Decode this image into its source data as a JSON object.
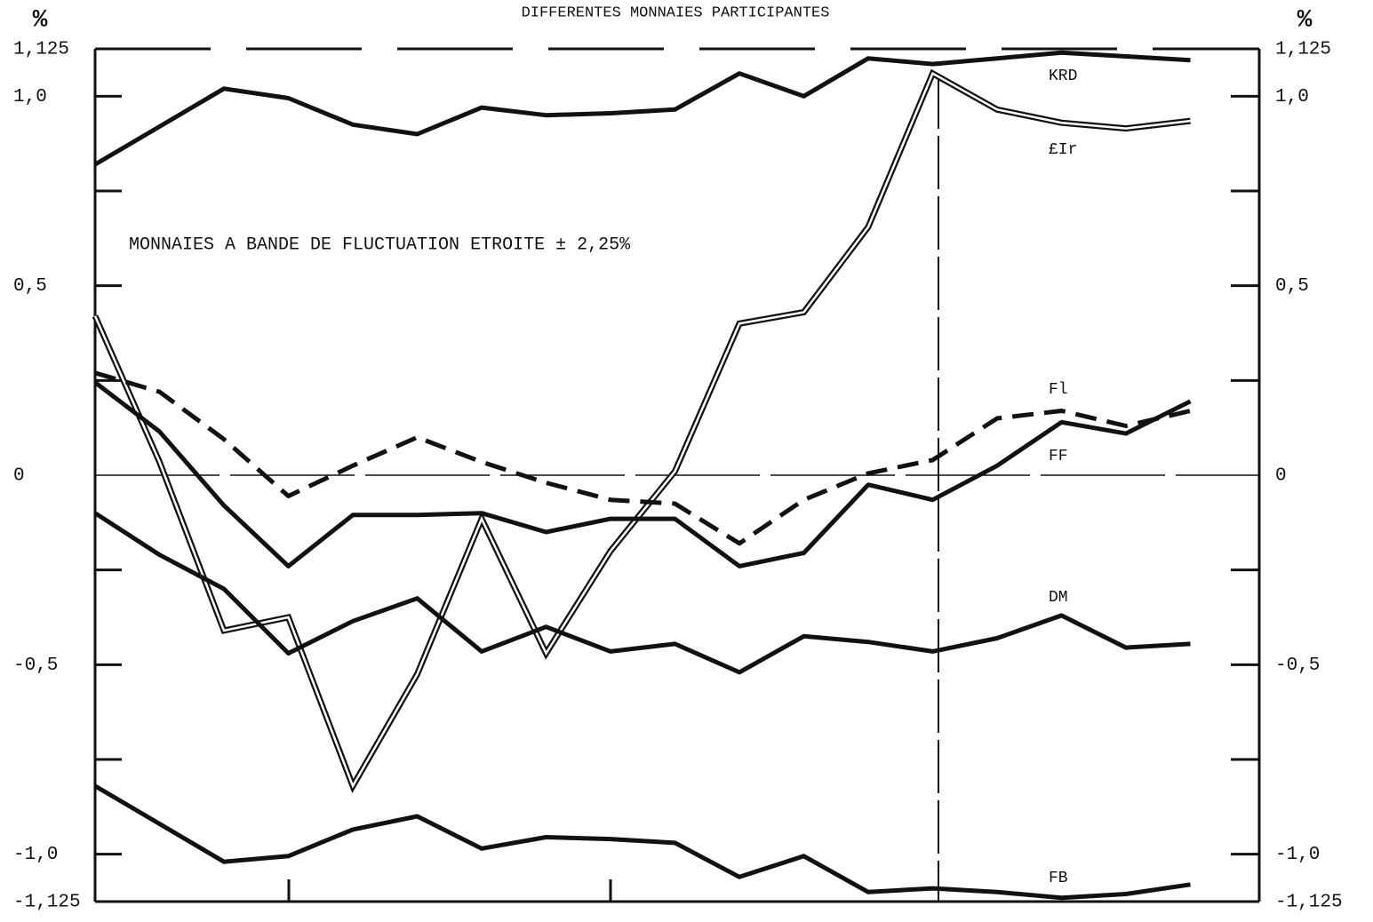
{
  "chart_data": {
    "type": "line",
    "title": "DIFFERENTES MONNAIES PARTICIPANTES",
    "y_label": "%",
    "annotation": "MONNAIES A BANDE DE FLUCTUATION ETROITE ± 2,25%",
    "categories": [
      null,
      null,
      null,
      null,
      null,
      null,
      null,
      null,
      null,
      null,
      null,
      null,
      null,
      null,
      null,
      null,
      null,
      null
    ],
    "ylim": [
      -1.125,
      1.125
    ],
    "yticks": [
      {
        "value": -1.125,
        "label": "-1,125"
      },
      {
        "value": -1.0,
        "label": "-1,0"
      },
      {
        "value": -0.5,
        "label": "-0,5"
      },
      0,
      {
        "value": 0.5,
        "label": "0,5"
      },
      {
        "value": 1.0,
        "label": "1,0"
      },
      {
        "value": 1.125,
        "label": "1,125"
      }
    ],
    "minor_yticks": [
      -0.75,
      -0.25,
      0.25,
      0.75
    ],
    "series": [
      {
        "name": "KRD",
        "color": "#111111",
        "style": "solid",
        "values": [
          0.82,
          0.92,
          1.02,
          0.995,
          0.925,
          0.9,
          0.97,
          0.95,
          0.955,
          0.965,
          1.06,
          1.0,
          1.1,
          1.085,
          1.1,
          1.115,
          1.105,
          1.095
        ]
      },
      {
        "name": "£Ir",
        "color": "#111111",
        "style": "double",
        "values": [
          0.42,
          0.035,
          -0.41,
          -0.375,
          -0.82,
          -0.525,
          -0.115,
          -0.47,
          -0.2,
          0.01,
          0.4,
          0.43,
          0.655,
          1.06,
          0.965,
          0.93,
          0.915,
          0.935
        ]
      },
      {
        "name": "Fl",
        "color": "#111111",
        "style": "dashed",
        "values": [
          0.27,
          0.22,
          0.095,
          -0.055,
          0.025,
          0.1,
          0.035,
          -0.02,
          -0.065,
          -0.075,
          -0.18,
          -0.065,
          0.005,
          0.04,
          0.15,
          0.17,
          0.13,
          0.17
        ]
      },
      {
        "name": "FF",
        "color": "#111111",
        "style": "solid",
        "values": [
          0.245,
          0.115,
          -0.08,
          -0.24,
          -0.105,
          -0.105,
          -0.1,
          -0.15,
          -0.115,
          -0.115,
          -0.24,
          -0.205,
          -0.025,
          -0.065,
          0.025,
          0.14,
          0.11,
          0.195
        ]
      },
      {
        "name": "DM",
        "color": "#111111",
        "style": "solid",
        "values": [
          -0.1,
          -0.21,
          -0.3,
          -0.47,
          -0.385,
          -0.325,
          -0.465,
          -0.4,
          -0.465,
          -0.445,
          -0.52,
          -0.425,
          -0.44,
          -0.465,
          -0.43,
          -0.37,
          -0.455,
          -0.445
        ]
      },
      {
        "name": "FB",
        "color": "#111111",
        "style": "solid",
        "values": [
          -0.82,
          -0.92,
          -1.02,
          -1.005,
          -0.935,
          -0.9,
          -0.985,
          -0.955,
          -0.96,
          -0.97,
          -1.06,
          -1.005,
          -1.1,
          -1.09,
          -1.1,
          -1.115,
          -1.105,
          -1.08
        ]
      }
    ]
  }
}
